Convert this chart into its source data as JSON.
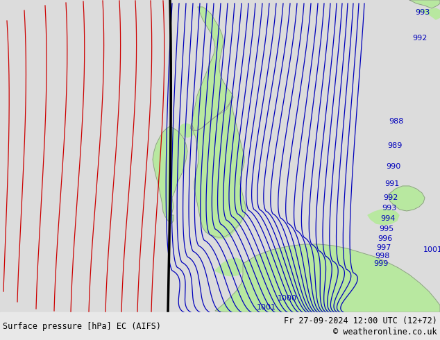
{
  "title_left": "Surface pressure [hPa] EC (AIFS)",
  "title_right": "Fr 27-09-2024 12:00 UTC (12+72)",
  "copyright": "© weatheronline.co.uk",
  "bg_color": "#dcdcdc",
  "land_color": "#b8e8a0",
  "border_color": "#888888",
  "blue_color": "#0000bb",
  "red_color": "#cc0000",
  "black_color": "#000000",
  "footer_fontsize": 8.5,
  "label_fontsize": 8
}
